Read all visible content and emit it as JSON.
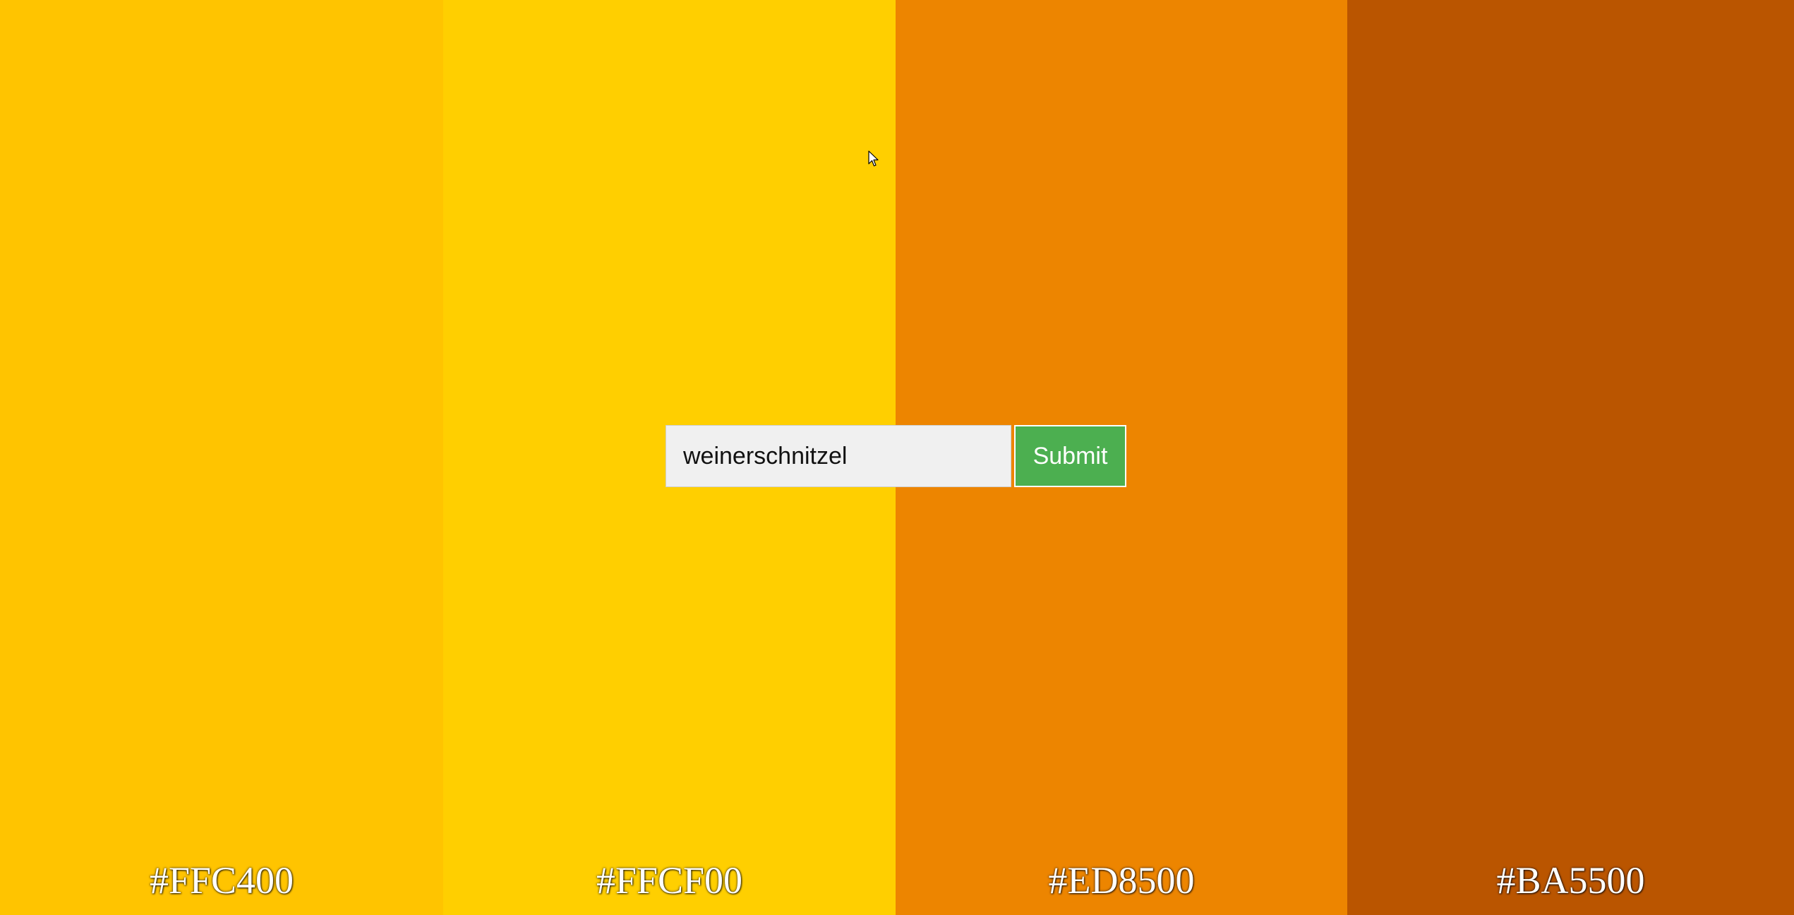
{
  "palette": [
    {
      "hex_label": "#FFC400",
      "color": "#FFC400"
    },
    {
      "hex_label": "#FFCF00",
      "color": "#FFCF00"
    },
    {
      "hex_label": "#ED8500",
      "color": "#ED8500"
    },
    {
      "hex_label": "#BA5500",
      "color": "#BA5500"
    }
  ],
  "form": {
    "input_value": "weinerschnitzel",
    "submit_label": "Submit",
    "submit_color": "#4CAF50"
  },
  "icons": {
    "cursor": "mouse-pointer-icon"
  }
}
